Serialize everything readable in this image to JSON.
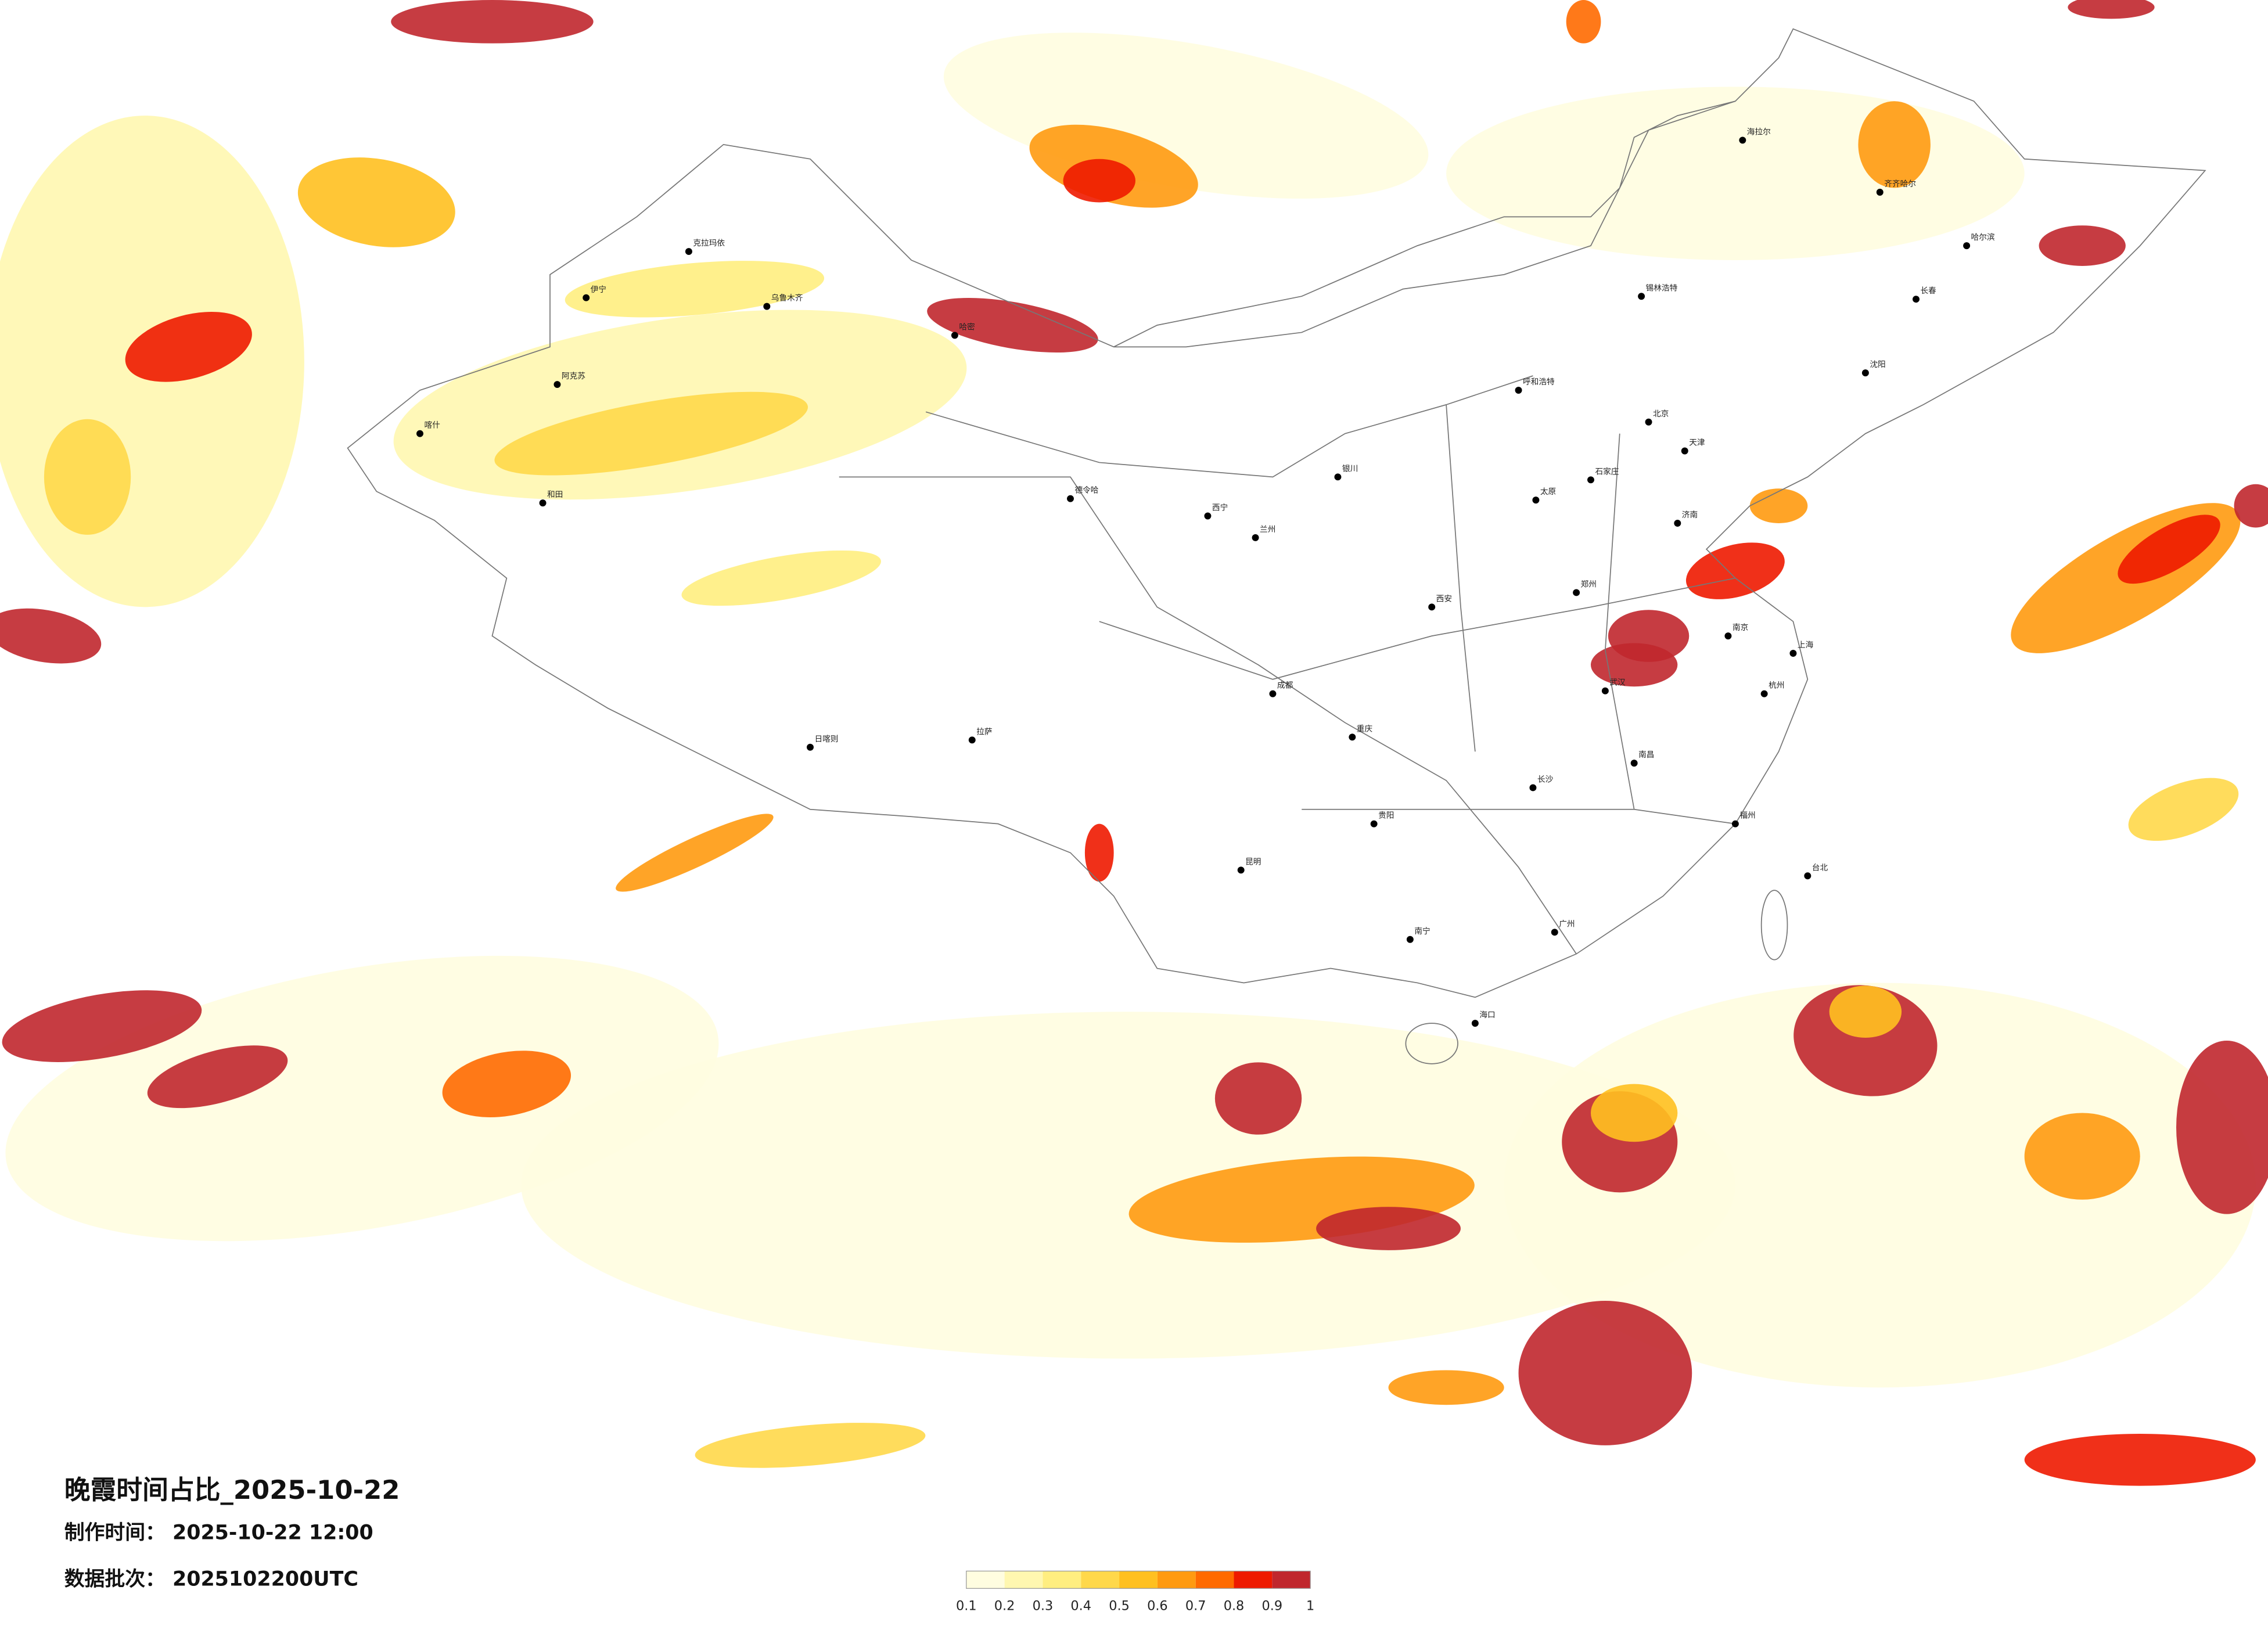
{
  "title": "晚霞时间占比_2025-10-22",
  "made_time": "制作时间：  2025-10-22 12:00",
  "batch": "数据批次：  2025102200UTC",
  "legend": {
    "ticks": [
      0.1,
      0.2,
      0.3,
      0.4,
      0.5,
      0.6,
      0.7,
      0.8,
      0.9,
      1
    ],
    "colors": [
      "#fffde0",
      "#fff7b0",
      "#ffee80",
      "#ffd84a",
      "#ffc020",
      "#ff9a10",
      "#ff6a00",
      "#ee1a00",
      "#c0272d"
    ]
  },
  "cities": [
    "海拉尔",
    "齐齐哈尔",
    "哈尔滨",
    "长春",
    "沈阳",
    "北京",
    "天津",
    "石家庄",
    "太原",
    "呼和浩特",
    "郑州",
    "济南",
    "南京",
    "上海",
    "杭州",
    "武汉",
    "长沙",
    "南昌",
    "福州",
    "广州",
    "南宁",
    "海口",
    "贵阳",
    "昆明",
    "成都",
    "重庆",
    "西安",
    "兰州",
    "西宁",
    "银川",
    "拉萨",
    "乌鲁木齐",
    "喀什",
    "和田",
    "哈密",
    "台北",
    "克拉玛依",
    "伊宁",
    "阿克苏",
    "日喀则",
    "德令哈",
    "锡林浩特"
  ]
}
